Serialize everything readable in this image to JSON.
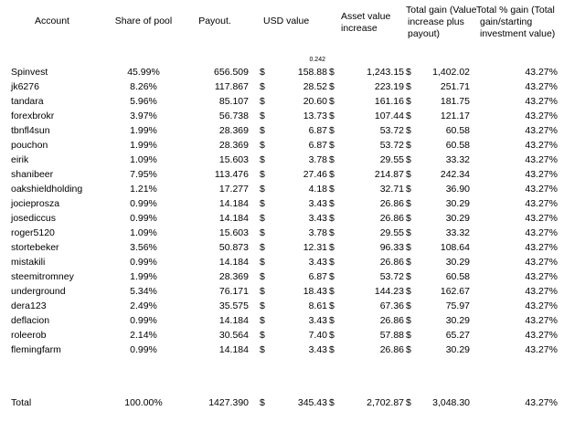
{
  "headers": {
    "account": "Account",
    "share": "Share of pool",
    "payout": "Payout.",
    "usd": "USD value",
    "asset_line1": "Asset value",
    "asset_line2": "increase",
    "total_line1": "Total gain (Value",
    "total_line2": "increase plus",
    "total_line3": "payout)",
    "pct_line1": "Total % gain (Total",
    "pct_line2": "gain/starting",
    "pct_line3": "investment value)"
  },
  "rate": "0.242",
  "currency_symbol": "$",
  "rows": [
    {
      "account": "Spinvest",
      "share": "45.99%",
      "payout": "656.509",
      "usd": "158.88",
      "asset": "1,243.15",
      "total": "1,402.02",
      "pct": "43.27%"
    },
    {
      "account": "jk6276",
      "share": "8.26%",
      "payout": "117.867",
      "usd": "28.52",
      "asset": "223.19",
      "total": "251.71",
      "pct": "43.27%"
    },
    {
      "account": "tandara",
      "share": "5.96%",
      "payout": "85.107",
      "usd": "20.60",
      "asset": "161.16",
      "total": "181.75",
      "pct": "43.27%"
    },
    {
      "account": "forexbrokr",
      "share": "3.97%",
      "payout": "56.738",
      "usd": "13.73",
      "asset": "107.44",
      "total": "121.17",
      "pct": "43.27%"
    },
    {
      "account": "tbnfl4sun",
      "share": "1.99%",
      "payout": "28.369",
      "usd": "6.87",
      "asset": "53.72",
      "total": "60.58",
      "pct": "43.27%"
    },
    {
      "account": "pouchon",
      "share": "1.99%",
      "payout": "28.369",
      "usd": "6.87",
      "asset": "53.72",
      "total": "60.58",
      "pct": "43.27%"
    },
    {
      "account": "eirik",
      "share": "1.09%",
      "payout": "15.603",
      "usd": "3.78",
      "asset": "29.55",
      "total": "33.32",
      "pct": "43.27%"
    },
    {
      "account": "shanibeer",
      "share": "7.95%",
      "payout": "113.476",
      "usd": "27.46",
      "asset": "214.87",
      "total": "242.34",
      "pct": "43.27%"
    },
    {
      "account": "oakshieldholding",
      "share": "1.21%",
      "payout": "17.277",
      "usd": "4.18",
      "asset": "32.71",
      "total": "36.90",
      "pct": "43.27%"
    },
    {
      "account": "jocieprosza",
      "share": "0.99%",
      "payout": "14.184",
      "usd": "3.43",
      "asset": "26.86",
      "total": "30.29",
      "pct": "43.27%"
    },
    {
      "account": "josediccus",
      "share": "0.99%",
      "payout": "14.184",
      "usd": "3.43",
      "asset": "26.86",
      "total": "30.29",
      "pct": "43.27%"
    },
    {
      "account": "roger5120",
      "share": "1.09%",
      "payout": "15.603",
      "usd": "3.78",
      "asset": "29.55",
      "total": "33.32",
      "pct": "43.27%"
    },
    {
      "account": "stortebeker",
      "share": "3.56%",
      "payout": "50.873",
      "usd": "12.31",
      "asset": "96.33",
      "total": "108.64",
      "pct": "43.27%"
    },
    {
      "account": "mistakili",
      "share": "0.99%",
      "payout": "14.184",
      "usd": "3.43",
      "asset": "26.86",
      "total": "30.29",
      "pct": "43.27%"
    },
    {
      "account": "steemitromney",
      "share": "1.99%",
      "payout": "28.369",
      "usd": "6.87",
      "asset": "53.72",
      "total": "60.58",
      "pct": "43.27%"
    },
    {
      "account": "underground",
      "share": "5.34%",
      "payout": "76.171",
      "usd": "18.43",
      "asset": "144.23",
      "total": "162.67",
      "pct": "43.27%"
    },
    {
      "account": "dera123",
      "share": "2.49%",
      "payout": "35.575",
      "usd": "8.61",
      "asset": "67.36",
      "total": "75.97",
      "pct": "43.27%"
    },
    {
      "account": "deflacion",
      "share": "0.99%",
      "payout": "14.184",
      "usd": "3.43",
      "asset": "26.86",
      "total": "30.29",
      "pct": "43.27%"
    },
    {
      "account": "roleerob",
      "share": "2.14%",
      "payout": "30.564",
      "usd": "7.40",
      "asset": "57.88",
      "total": "65.27",
      "pct": "43.27%"
    },
    {
      "account": "flemingfarm",
      "share": "0.99%",
      "payout": "14.184",
      "usd": "3.43",
      "asset": "26.86",
      "total": "30.29",
      "pct": "43.27%"
    }
  ],
  "total": {
    "account": "Total",
    "share": "100.00%",
    "payout": "1427.390",
    "usd": "345.43",
    "asset": "2,702.87",
    "total": "3,048.30",
    "pct": "43.27%"
  }
}
